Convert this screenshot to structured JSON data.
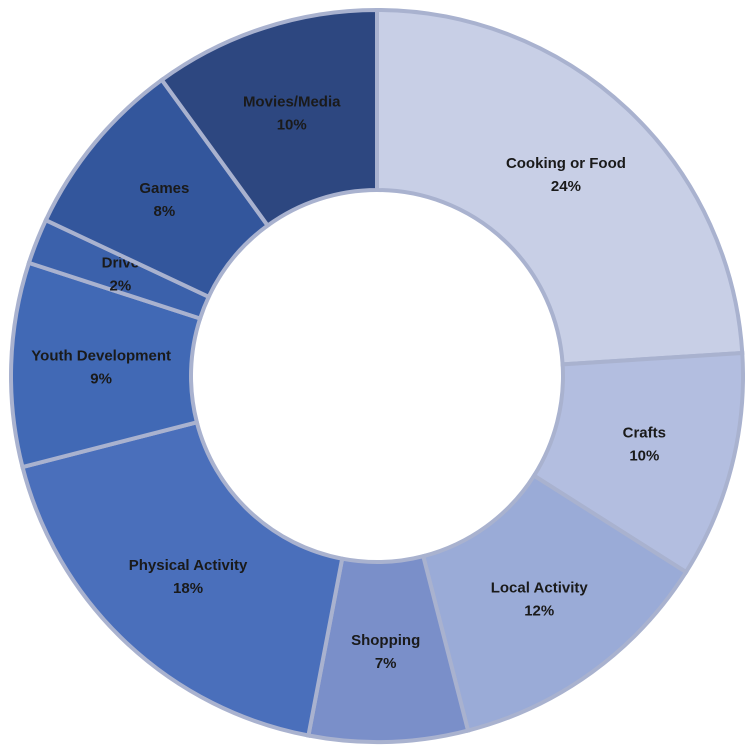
{
  "chart_data": {
    "type": "donut",
    "categories": [
      "Cooking or Food",
      "Crafts",
      "Local Activity",
      "Shopping",
      "Physical Activity",
      "Youth Development",
      "Drive",
      "Games",
      "Movies/Media"
    ],
    "values": [
      24,
      10,
      12,
      7,
      18,
      9,
      2,
      8,
      10
    ],
    "value_labels": [
      "24%",
      "10%",
      "12%",
      "7%",
      "18%",
      "9%",
      "2%",
      "8%",
      "10%"
    ],
    "colors": [
      "#c8cfe6",
      "#b3bee0",
      "#9aabd7",
      "#7a8fc9",
      "#4a6fbb",
      "#4169b5",
      "#3b61ab",
      "#33569c",
      "#2d4780"
    ]
  }
}
